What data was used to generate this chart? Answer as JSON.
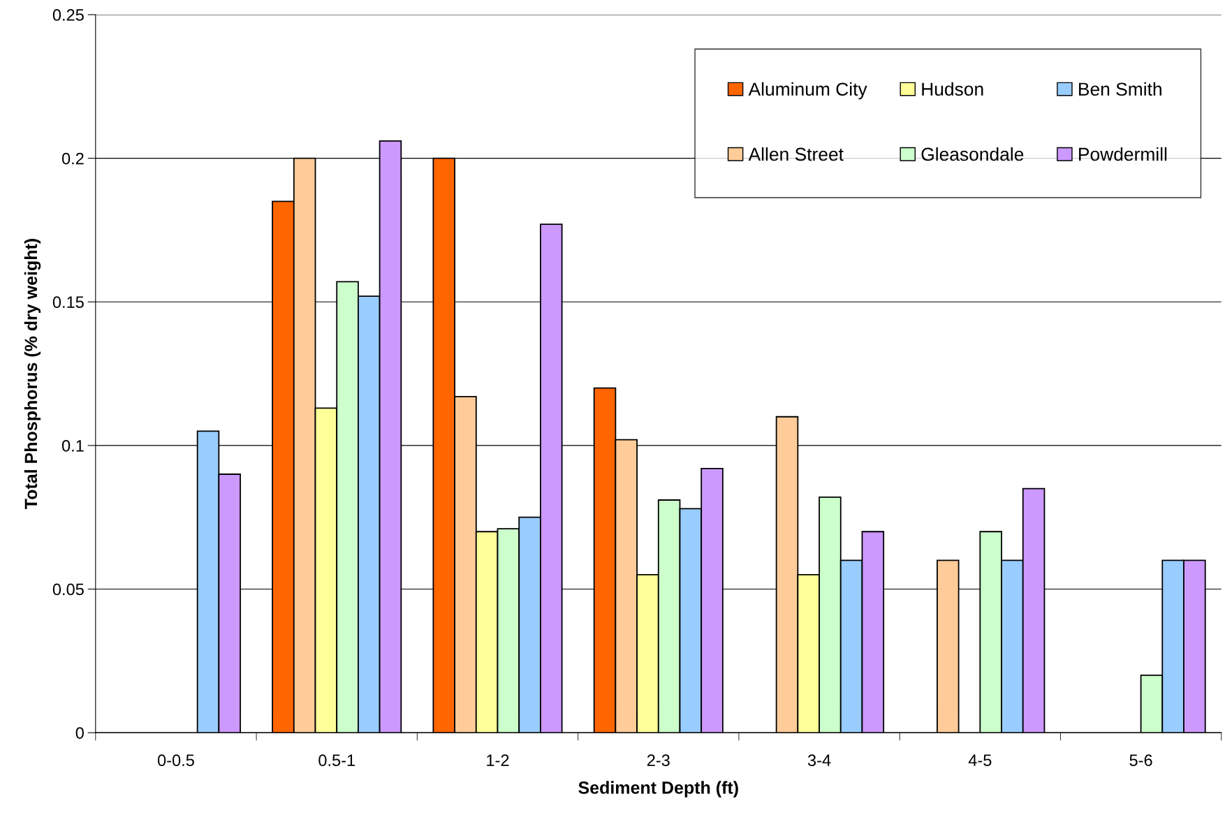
{
  "chart_data": {
    "type": "bar",
    "xlabel": "Sediment Depth (ft)",
    "ylabel": "Total Phosphorus (% dry weight)",
    "categories": [
      "0-0.5",
      "0.5-1",
      "1-2",
      "2-3",
      "3-4",
      "4-5",
      "5-6"
    ],
    "series": [
      {
        "name": "Aluminum City",
        "color": "#ff6600",
        "values": [
          null,
          0.185,
          0.2,
          0.12,
          null,
          null,
          null
        ]
      },
      {
        "name": "Allen Street",
        "color": "#ffcc99",
        "values": [
          null,
          0.2,
          0.117,
          0.102,
          0.11,
          0.06,
          null
        ]
      },
      {
        "name": "Hudson",
        "color": "#ffff99",
        "values": [
          null,
          0.113,
          0.07,
          0.055,
          0.055,
          null,
          null
        ]
      },
      {
        "name": "Gleasondale",
        "color": "#ccffcc",
        "values": [
          null,
          0.157,
          0.071,
          0.081,
          0.082,
          0.07,
          0.02
        ]
      },
      {
        "name": "Ben Smith",
        "color": "#99ccff",
        "values": [
          0.105,
          0.152,
          0.075,
          0.078,
          0.06,
          0.06,
          0.06
        ]
      },
      {
        "name": "Powdermill",
        "color": "#cc99ff",
        "values": [
          0.09,
          0.206,
          0.177,
          0.092,
          0.07,
          0.085,
          0.06
        ]
      }
    ],
    "ylim": [
      0,
      0.25
    ],
    "yticks": [
      0,
      0.05,
      0.1,
      0.15,
      0.2,
      0.25
    ],
    "grid": "y",
    "legend": "top right"
  }
}
